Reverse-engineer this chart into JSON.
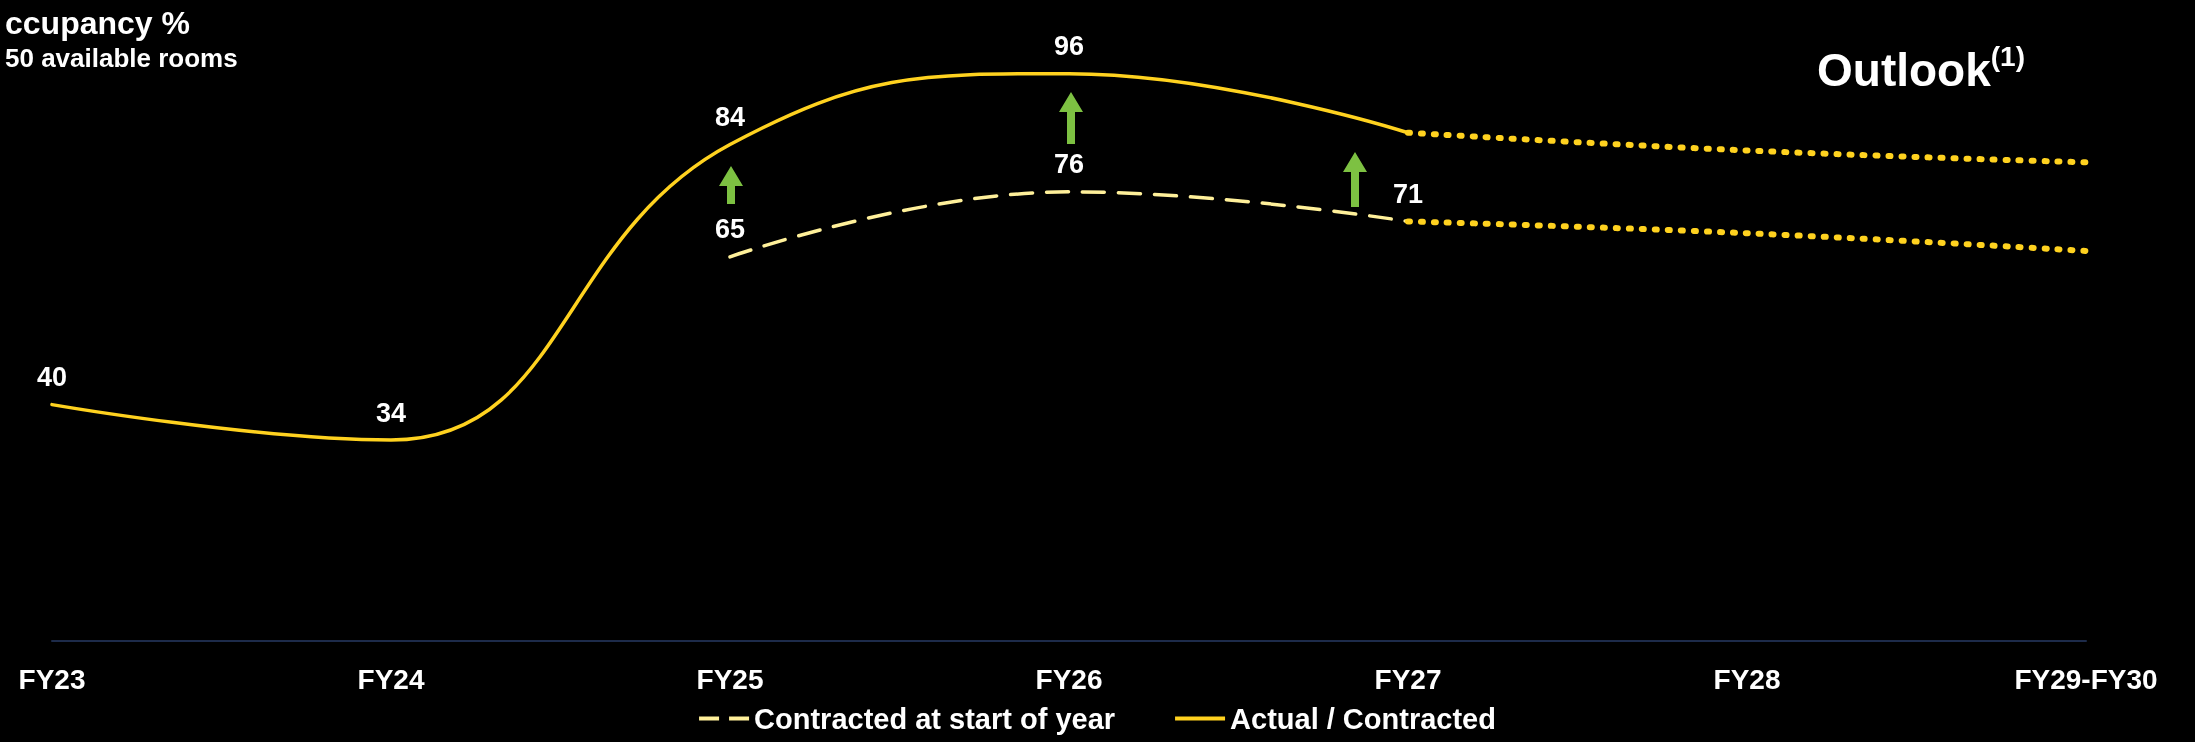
{
  "chart_data": {
    "type": "line",
    "title": "ccupancy %",
    "subtitle": "50 available rooms",
    "annotations": [
      "Outlook$^{(1)}$"
    ],
    "categories": [
      "FY23",
      "FY24",
      "FY25",
      "FY26",
      "FY27",
      "FY28",
      "FY29-FY30"
    ],
    "series": [
      {
        "name": "Contracted at start of year",
        "color": "#fff09a",
        "line_style": "dashed",
        "values": [
          null,
          null,
          65,
          76,
          71,
          null,
          null
        ],
        "value_labels": [
          null,
          null,
          "65",
          "76",
          "71",
          null,
          null
        ]
      },
      {
        "name": "Actual / Contracted",
        "color": "#ffd21f",
        "line_style": "solid",
        "values": [
          40,
          34,
          84,
          96,
          86,
          null,
          null
        ],
        "value_labels": [
          "40",
          "34",
          "84",
          "96",
          null,
          null,
          null
        ]
      },
      {
        "color": "#ffd21f",
        "line_style": "dotted",
        "values": [
          null,
          null,
          null,
          null,
          86,
          83,
          81
        ]
      },
      {
        "color": "#ffd21f",
        "line_style": "dotted",
        "values": [
          null,
          null,
          null,
          null,
          71,
          69,
          66
        ]
      }
    ],
    "tick_labels": "x",
    "grid": false,
    "legend": "bottom"
  }
}
